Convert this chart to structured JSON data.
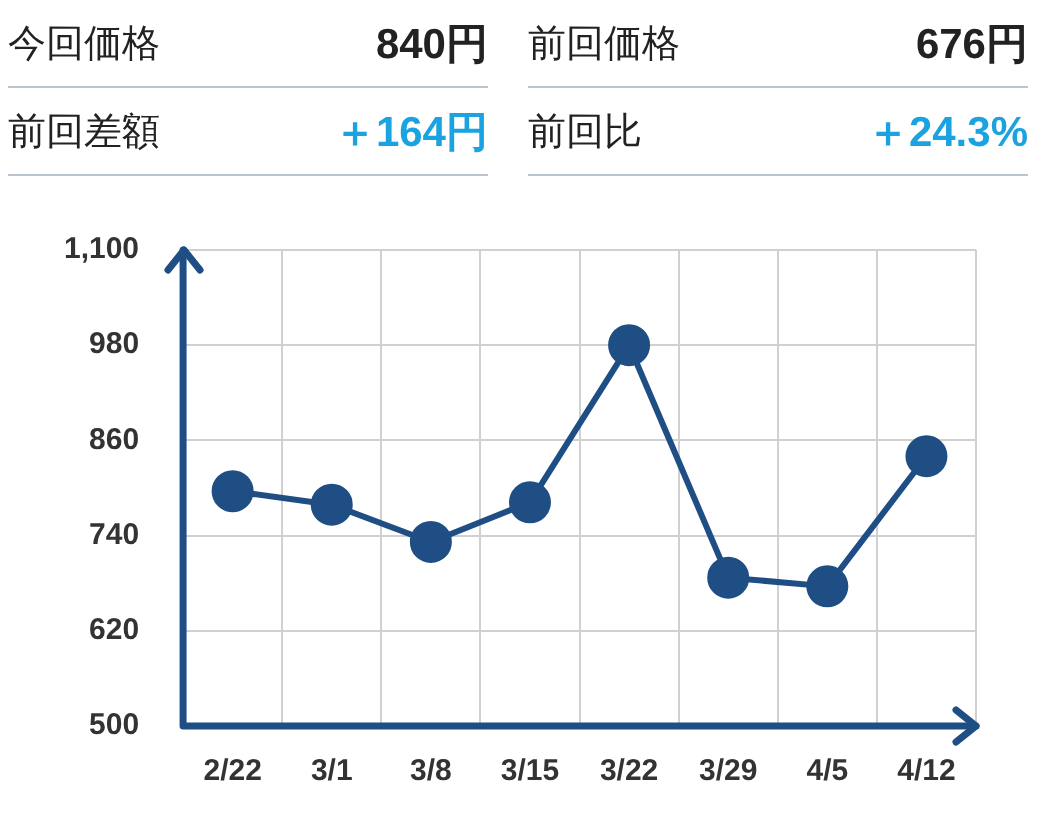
{
  "chart_data": {
    "type": "line",
    "annotations": [
      "今回価格",
      "840円",
      "前回価格",
      "676円",
      "前回差額",
      "＋164円",
      "前回比",
      "＋24.3%"
    ],
    "categories": [
      "2/22",
      "3/1",
      "3/8",
      "3/15",
      "3/22",
      "3/29",
      "4/5",
      "4/12"
    ],
    "series": [
      {
        "color": "#1f4e85",
        "values": [
          796,
          779,
          732,
          782,
          980,
          687,
          676,
          840
        ]
      }
    ],
    "ylim": [
      500,
      1100
    ],
    "yticks": [
      500,
      620,
      740,
      860,
      980,
      {
        "value": 1100,
        "label": "1,100"
      }
    ],
    "grid": true,
    "marker": "circle",
    "line_style": "solid",
    "legend": false
  }
}
